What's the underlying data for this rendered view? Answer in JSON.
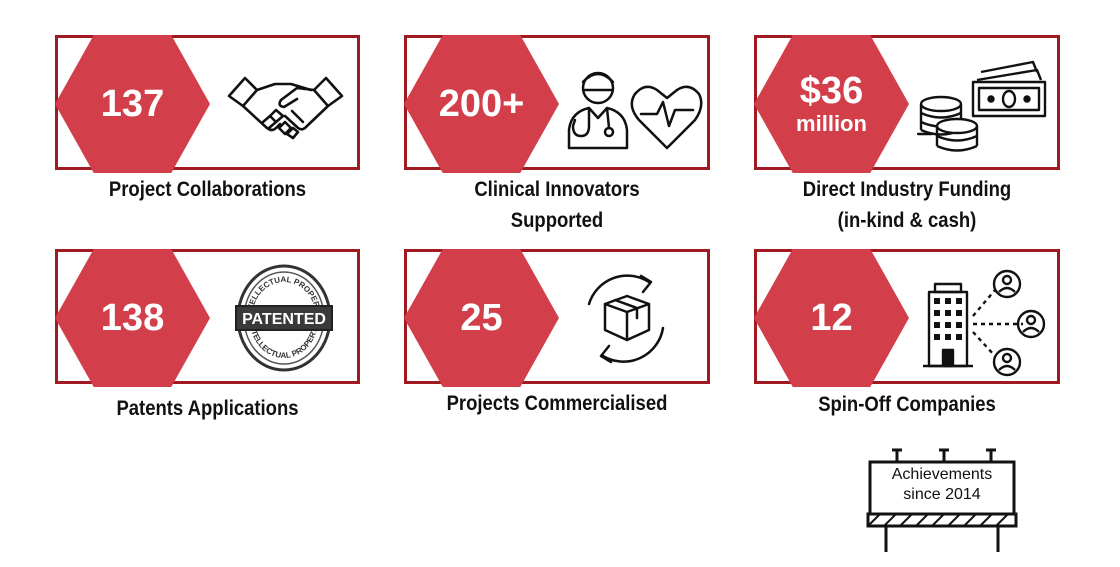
{
  "stats": [
    {
      "value": "137",
      "label": "Project Collaborations",
      "icon": "handshake-icon"
    },
    {
      "value": "200+",
      "label_line1": "Clinical Innovators",
      "label_line2": "Supported",
      "icon": "clinician-heart-icon"
    },
    {
      "value": "$36",
      "value_sub": "million",
      "label_line1": "Direct Industry Funding",
      "label_line2": "(in-kind & cash)",
      "icon": "money-coins-icon"
    },
    {
      "value": "138",
      "label": "Patents Applications",
      "icon": "patented-stamp-icon"
    },
    {
      "value": "25",
      "label": "Projects Commercialised",
      "icon": "box-cycle-icon"
    },
    {
      "value": "12",
      "label": "Spin-Off Companies",
      "icon": "building-network-icon"
    }
  ],
  "stamp": {
    "main": "PATENTED",
    "ring_top": "INTELLECTUAL PROPERTY",
    "ring_bottom": "INTELLECTUAL PROPERTY"
  },
  "billboard": {
    "line1": "Achievements",
    "line2": "since 2014"
  },
  "colors": {
    "accent": "#d23f4a",
    "border": "#a11a22"
  }
}
